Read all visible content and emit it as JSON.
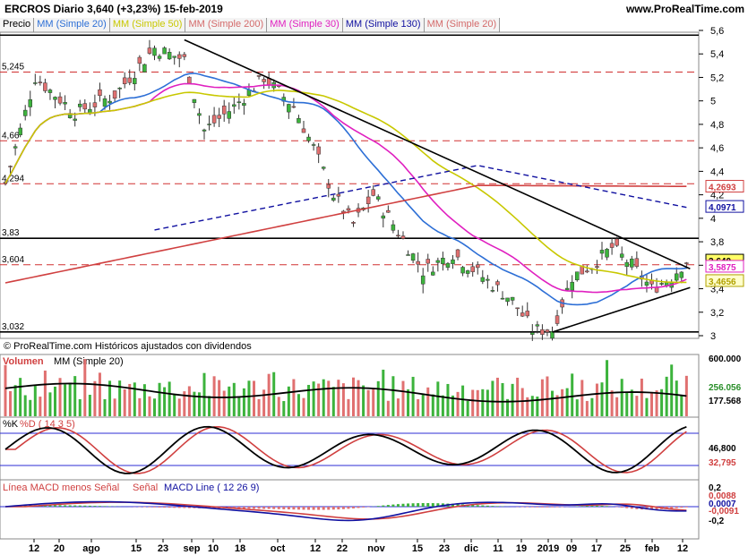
{
  "header": {
    "title": "ERCROS    Diario    3,640 (+3,23%)    15-feb-2019",
    "site": "www.ProRealTime.com"
  },
  "indicators": [
    {
      "label": "Precio",
      "color": "#000000"
    },
    {
      "label": "MM (Simple 20)",
      "color": "#2d6fd6"
    },
    {
      "label": "MM (Simple 50)",
      "color": "#c8c800"
    },
    {
      "label": "MM (Simple 200)",
      "color": "#d46a6a"
    },
    {
      "label": "MM (Simple 30)",
      "color": "#e020c0"
    },
    {
      "label": "MM (Simple 130)",
      "color": "#1010a0"
    },
    {
      "label": "MM (Simple 20)",
      "color": "#d46a6a"
    }
  ],
  "footer_note": "© ProRealTime.com  Históricos ajustados con dividendos",
  "price_axis": [
    "5,6",
    "5,4",
    "5,2",
    "5",
    "4,8",
    "4,6",
    "4,4",
    "4,2",
    "4",
    "3,8",
    "3,6",
    "3,4",
    "3,2",
    "3"
  ],
  "level_labels": [
    "5,245",
    "4,66",
    "4,294",
    "3,83",
    "3,604",
    "3,032"
  ],
  "price_badges": [
    {
      "text": "3,640",
      "color": "#000000",
      "bg": "#ffff66"
    },
    {
      "text": "3,5875",
      "color": "#e020c0",
      "bg": "#ffffff"
    },
    {
      "text": "3,4656",
      "color": "#b0a000",
      "bg": "#ffffcc"
    },
    {
      "text": "4,2693",
      "color": "#d04040",
      "bg": "#ffffff"
    },
    {
      "text": "4,0971",
      "color": "#1010a0",
      "bg": "#ffffff"
    }
  ],
  "volume_panel": {
    "labels": [
      "Volumen",
      "MM (Simple 20)"
    ],
    "axis": [
      "600.000",
      "256.056",
      "177.568"
    ]
  },
  "stoch_panel": {
    "labels": [
      "%K",
      "%D ( 14 3 5)"
    ],
    "axis": [
      "46,800",
      "32,795"
    ]
  },
  "macd_panel": {
    "labels": [
      "Línea MACD menos Señal",
      "Señal",
      "MACD Line ( 12 26 9)"
    ],
    "axis": [
      "0,2",
      "0,0088",
      "0,0007",
      "-0,0091",
      "-0,2"
    ]
  },
  "x_axis": [
    "12",
    "20",
    "ago",
    "15",
    "23",
    "sep",
    "10",
    "18",
    "oct",
    "12",
    "22",
    "nov",
    "15",
    "23",
    "dic",
    "11",
    "19",
    "2019",
    "09",
    "17",
    "25",
    "feb",
    "12"
  ],
  "chart_data": {
    "type": "candlestick",
    "title": "ERCROS Diario",
    "ylim": [
      3.0,
      5.6
    ],
    "support_resistance": [
      5.245,
      4.66,
      4.294,
      3.83,
      3.604,
      3.032
    ],
    "last_close": 3.64,
    "ma_values": {
      "MM 30": 3.5875,
      "MM 50": 3.4656,
      "MM 200": 4.2693,
      "MM 130": 4.0971
    },
    "volume_ma": 177568,
    "volume_last": 256056,
    "stochastic": {
      "k": 46.8,
      "d": 32.795
    },
    "macd": {
      "histogram": 0.0007,
      "signal": 0.0088,
      "macd": -0.0091
    }
  }
}
